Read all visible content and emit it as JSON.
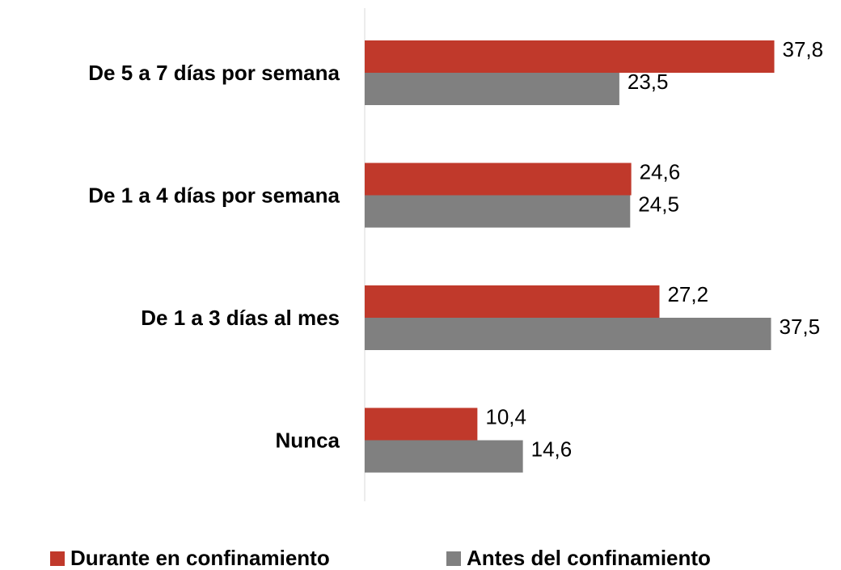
{
  "chart_data": {
    "type": "barh",
    "categories": [
      "De 5 a 7 días por semana",
      "De 1 a 4 días por semana",
      "De 1 a 3 días al mes",
      "Nunca"
    ],
    "series": [
      {
        "name": "Durante en confinamiento",
        "color": "#c0392b",
        "values": [
          37.8,
          24.6,
          27.2,
          10.4
        ],
        "value_labels": [
          "37,8",
          "24,6",
          "27,2",
          "10,4"
        ]
      },
      {
        "name": "Antes del confinamiento",
        "color": "#808080",
        "values": [
          23.5,
          24.5,
          37.5,
          14.6
        ],
        "value_labels": [
          "23,5",
          "24,5",
          "37,5",
          "14,6"
        ]
      }
    ],
    "xlim": [
      0,
      40
    ],
    "legend": "bottom"
  }
}
